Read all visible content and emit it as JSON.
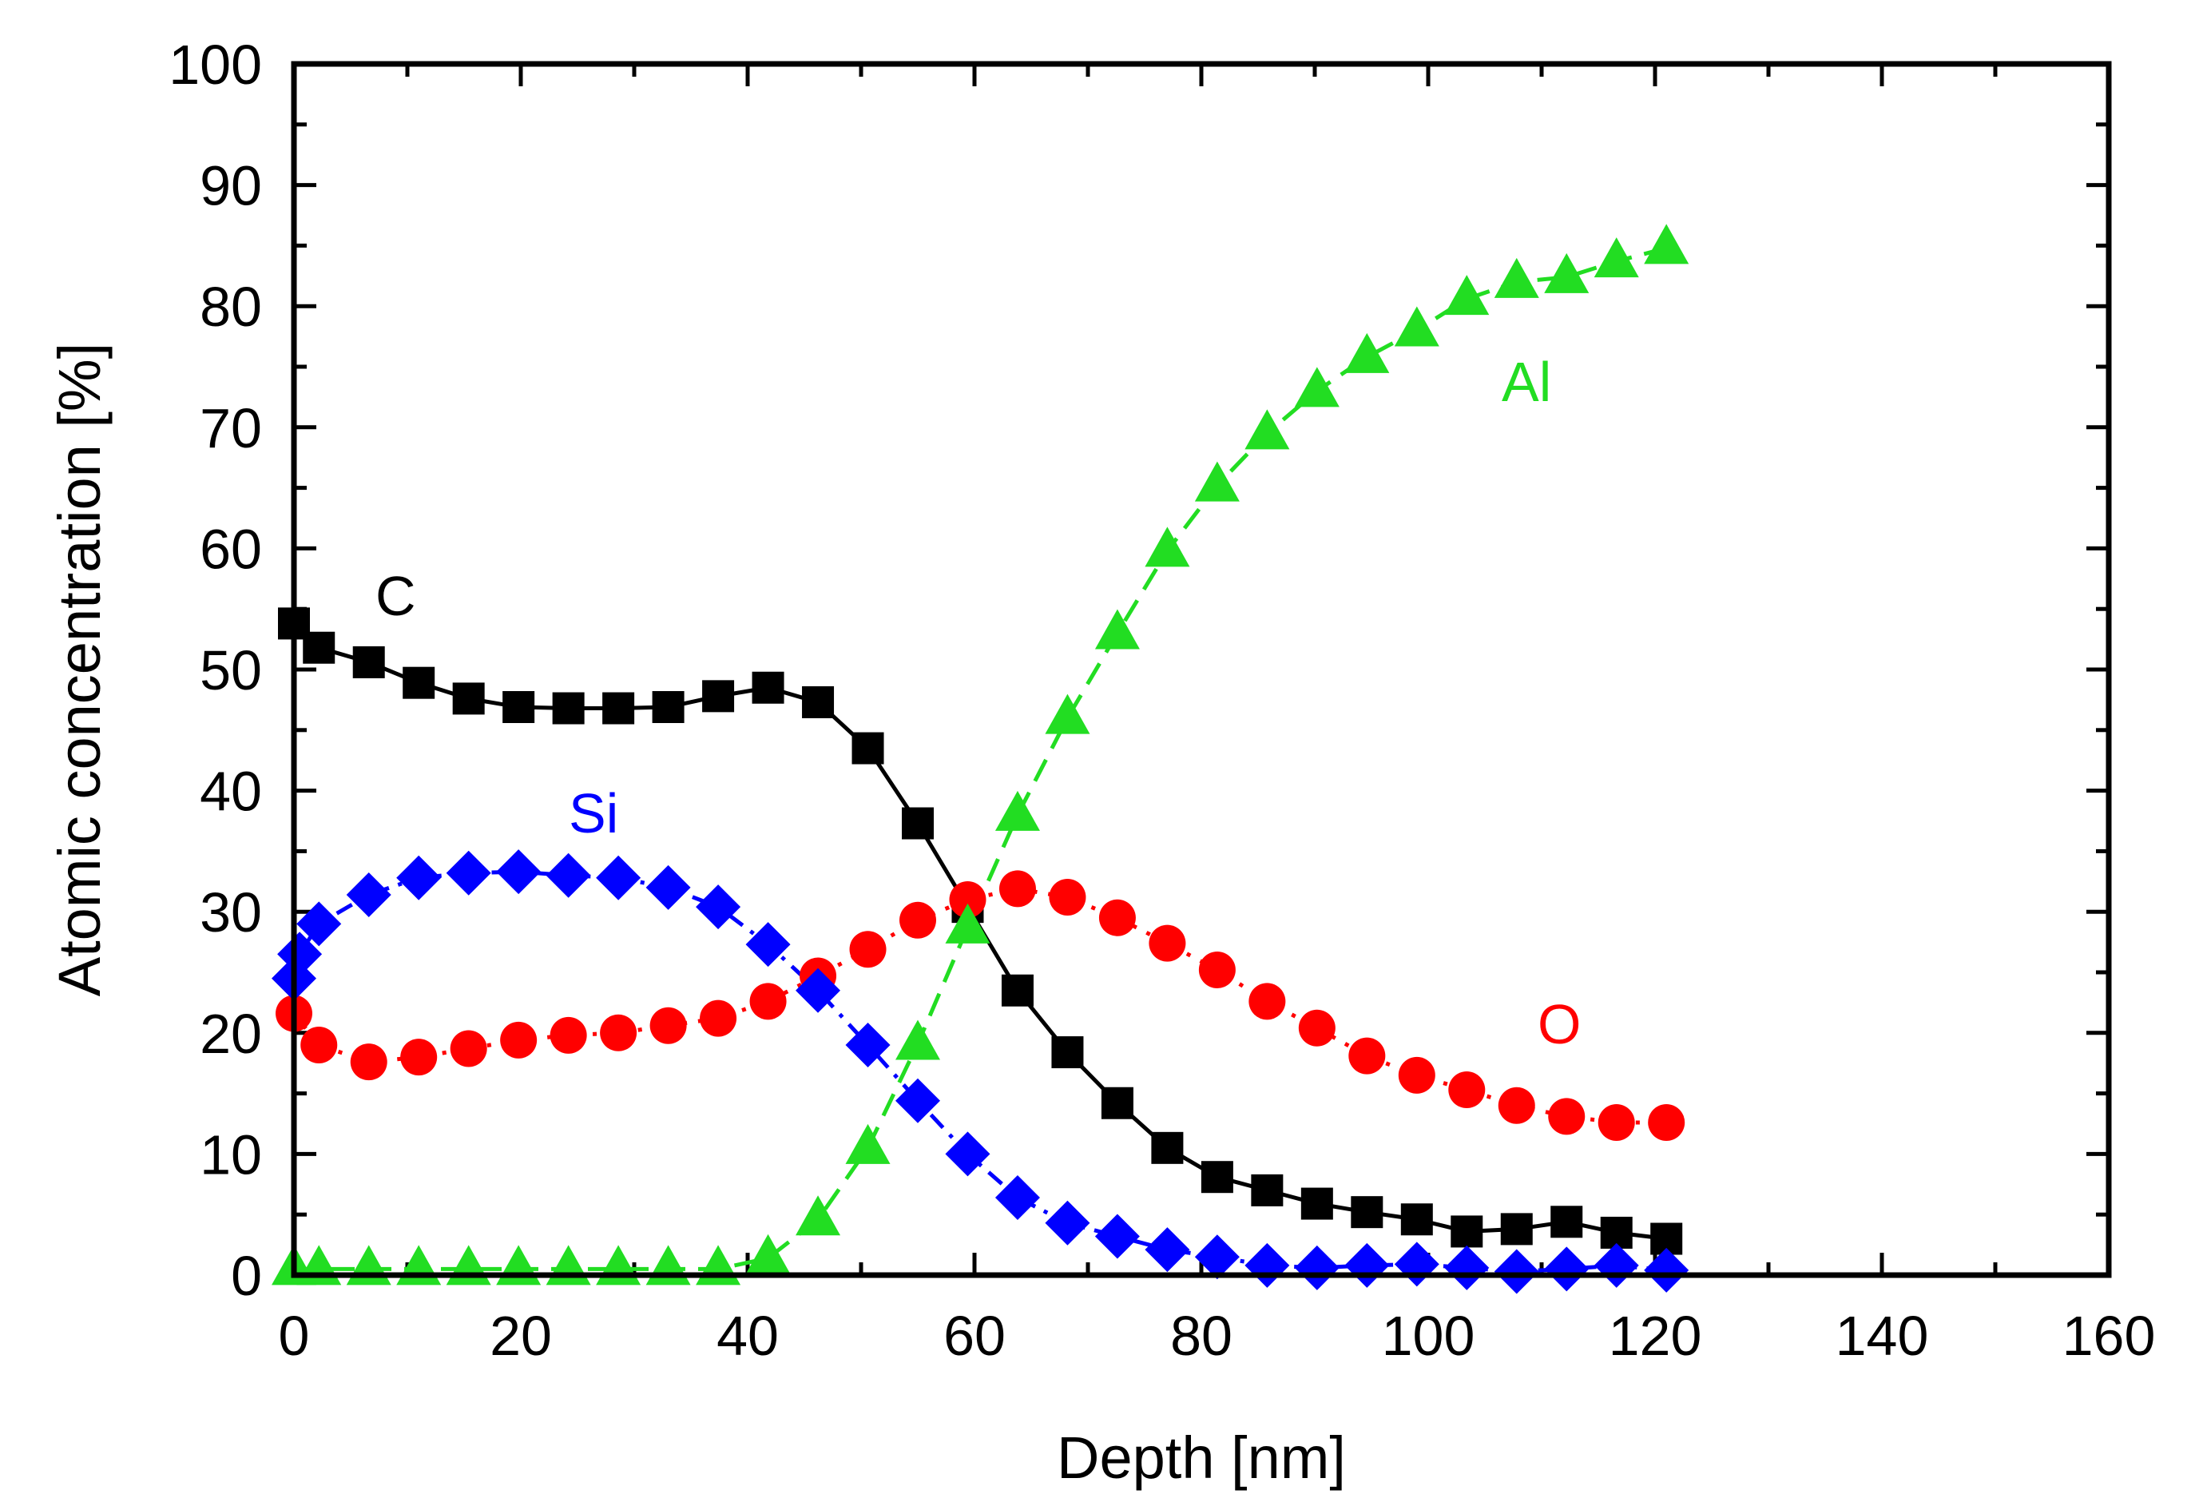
{
  "chart_data": {
    "type": "line",
    "title": "",
    "xlabel": "Depth [nm]",
    "ylabel": "Atomic concentration [%]",
    "xlim": [
      0,
      160
    ],
    "ylim": [
      0,
      100
    ],
    "x_ticks": [
      "0",
      "20",
      "40",
      "60",
      "80",
      "100",
      "120",
      "140",
      "160"
    ],
    "y_ticks": [
      "0",
      "10",
      "20",
      "30",
      "40",
      "50",
      "60",
      "70",
      "80",
      "90",
      "100"
    ],
    "grid": false,
    "legend": "none (series labels placed on plot)",
    "series": [
      {
        "name": "C",
        "color": "#000000",
        "marker": "square",
        "line_style": "solid",
        "points": [
          [
            0,
            53.8
          ],
          [
            2.2,
            51.8
          ],
          [
            6.6,
            50.6
          ],
          [
            11,
            48.9
          ],
          [
            15.4,
            47.6
          ],
          [
            19.8,
            46.9
          ],
          [
            24.2,
            46.8
          ],
          [
            28.6,
            46.8
          ],
          [
            33,
            46.9
          ],
          [
            37.4,
            47.8
          ],
          [
            41.8,
            48.5
          ],
          [
            46.2,
            47.3
          ],
          [
            50.6,
            43.5
          ],
          [
            55,
            37.3
          ],
          [
            59.4,
            30.4
          ],
          [
            63.8,
            23.5
          ],
          [
            68.2,
            18.4
          ],
          [
            72.6,
            14.2
          ],
          [
            77,
            10.5
          ],
          [
            81.4,
            8.1
          ],
          [
            85.8,
            7.0
          ],
          [
            90.2,
            5.9
          ],
          [
            94.6,
            5.2
          ],
          [
            99,
            4.6
          ],
          [
            103.4,
            3.6
          ],
          [
            107.8,
            3.8
          ],
          [
            112.2,
            4.4
          ],
          [
            116.6,
            3.5
          ],
          [
            121,
            3.0
          ]
        ]
      },
      {
        "name": "O",
        "color": "#ff0000",
        "marker": "circle",
        "line_style": "dotted",
        "points": [
          [
            0,
            21.6
          ],
          [
            2.2,
            19.0
          ],
          [
            6.6,
            17.6
          ],
          [
            11,
            18.0
          ],
          [
            15.4,
            18.7
          ],
          [
            19.8,
            19.4
          ],
          [
            24.2,
            19.8
          ],
          [
            28.6,
            20.0
          ],
          [
            33,
            20.6
          ],
          [
            37.4,
            21.2
          ],
          [
            41.8,
            22.6
          ],
          [
            46.2,
            24.7
          ],
          [
            50.6,
            26.9
          ],
          [
            55,
            29.3
          ],
          [
            59.4,
            31.0
          ],
          [
            63.8,
            31.9
          ],
          [
            68.2,
            31.2
          ],
          [
            72.6,
            29.5
          ],
          [
            77,
            27.4
          ],
          [
            81.4,
            25.2
          ],
          [
            85.8,
            22.6
          ],
          [
            90.2,
            20.4
          ],
          [
            94.6,
            18.1
          ],
          [
            99,
            16.5
          ],
          [
            103.4,
            15.3
          ],
          [
            107.8,
            14.0
          ],
          [
            112.2,
            13.1
          ],
          [
            116.6,
            12.6
          ],
          [
            121,
            12.6
          ]
        ]
      },
      {
        "name": "Si",
        "color": "#0000ff",
        "marker": "diamond",
        "line_style": "dash-dot",
        "points": [
          [
            0,
            24.5
          ],
          [
            0.5,
            26.5
          ],
          [
            2.2,
            29.0
          ],
          [
            6.6,
            31.4
          ],
          [
            11,
            32.8
          ],
          [
            15.4,
            33.2
          ],
          [
            19.8,
            33.3
          ],
          [
            24.2,
            33.0
          ],
          [
            28.6,
            32.8
          ],
          [
            33,
            32.0
          ],
          [
            37.4,
            30.4
          ],
          [
            41.8,
            27.3
          ],
          [
            46.2,
            23.5
          ],
          [
            50.6,
            19.0
          ],
          [
            55,
            14.4
          ],
          [
            59.4,
            10.0
          ],
          [
            63.8,
            6.4
          ],
          [
            68.2,
            4.3
          ],
          [
            72.6,
            3.2
          ],
          [
            77,
            2.1
          ],
          [
            81.4,
            1.5
          ],
          [
            85.8,
            0.8
          ],
          [
            90.2,
            0.6
          ],
          [
            94.6,
            0.8
          ],
          [
            99,
            0.9
          ],
          [
            103.4,
            0.6
          ],
          [
            107.8,
            0.3
          ],
          [
            112.2,
            0.5
          ],
          [
            116.6,
            0.8
          ],
          [
            121,
            0.4
          ]
        ]
      },
      {
        "name": "Al",
        "color": "#22dd22",
        "marker": "triangle",
        "line_style": "dashed",
        "points": [
          [
            0,
            0.5
          ],
          [
            2.2,
            0.5
          ],
          [
            6.6,
            0.5
          ],
          [
            11,
            0.5
          ],
          [
            15.4,
            0.5
          ],
          [
            19.8,
            0.5
          ],
          [
            24.2,
            0.5
          ],
          [
            28.6,
            0.5
          ],
          [
            33,
            0.5
          ],
          [
            37.4,
            0.5
          ],
          [
            41.8,
            1.4
          ],
          [
            46.2,
            4.6
          ],
          [
            50.6,
            10.5
          ],
          [
            55,
            19.1
          ],
          [
            59.4,
            28.7
          ],
          [
            63.8,
            38.0
          ],
          [
            68.2,
            46.0
          ],
          [
            72.6,
            53.0
          ],
          [
            77,
            59.8
          ],
          [
            81.4,
            65.2
          ],
          [
            85.8,
            69.5
          ],
          [
            90.2,
            73.0
          ],
          [
            94.6,
            75.8
          ],
          [
            99,
            78.0
          ],
          [
            103.4,
            80.6
          ],
          [
            107.8,
            82.0
          ],
          [
            112.2,
            82.4
          ],
          [
            116.6,
            83.7
          ],
          [
            121,
            84.8
          ]
        ]
      }
    ],
    "annotations": [
      {
        "text": "C",
        "series": "C"
      },
      {
        "text": "Si",
        "series": "Si"
      },
      {
        "text": "O",
        "series": "O"
      },
      {
        "text": "Al",
        "series": "Al"
      }
    ]
  }
}
